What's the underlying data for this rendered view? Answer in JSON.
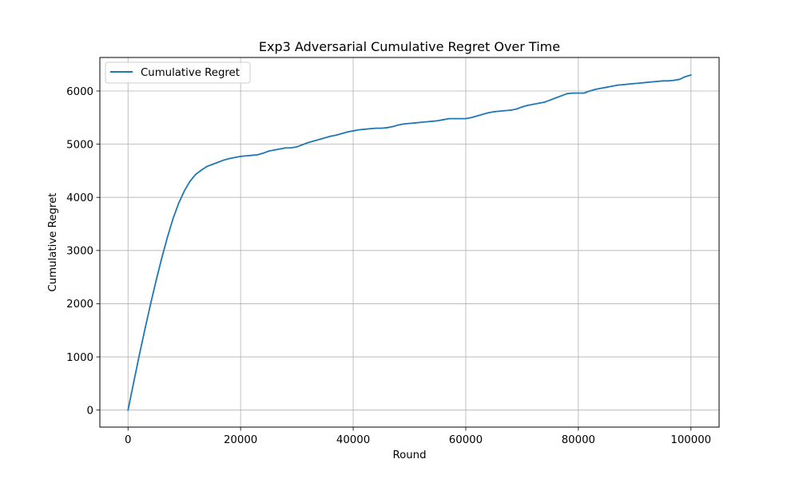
{
  "chart_data": {
    "type": "line",
    "title": "Exp3 Adversarial Cumulative Regret Over Time",
    "xlabel": "Round",
    "ylabel": "Cumulative Regret",
    "xlim": [
      -5000,
      105000
    ],
    "ylim": [
      -320,
      6630
    ],
    "xticks": [
      0,
      20000,
      40000,
      60000,
      80000,
      100000
    ],
    "yticks": [
      0,
      1000,
      2000,
      3000,
      4000,
      5000,
      6000
    ],
    "xtick_labels": [
      "0",
      "20000",
      "40000",
      "60000",
      "80000",
      "100000"
    ],
    "ytick_labels": [
      "0",
      "1000",
      "2000",
      "3000",
      "4000",
      "5000",
      "6000"
    ],
    "grid": true,
    "legend_position": "upper left",
    "series": [
      {
        "name": "Cumulative Regret",
        "color": "#1f77b4",
        "x": [
          0,
          1000,
          2000,
          3000,
          4000,
          5000,
          6000,
          7000,
          8000,
          9000,
          10000,
          11000,
          12000,
          13000,
          14000,
          15000,
          16000,
          17000,
          18000,
          19000,
          20000,
          21000,
          22000,
          23000,
          24000,
          25000,
          26000,
          27000,
          28000,
          29000,
          30000,
          31000,
          32000,
          33000,
          34000,
          35000,
          36000,
          37000,
          38000,
          39000,
          40000,
          41000,
          42000,
          43000,
          44000,
          45000,
          46000,
          47000,
          48000,
          49000,
          50000,
          51000,
          52000,
          53000,
          54000,
          55000,
          56000,
          57000,
          58000,
          59000,
          60000,
          61000,
          62000,
          63000,
          64000,
          65000,
          66000,
          67000,
          68000,
          69000,
          70000,
          71000,
          72000,
          73000,
          74000,
          75000,
          76000,
          77000,
          78000,
          79000,
          80000,
          81000,
          82000,
          83000,
          84000,
          85000,
          86000,
          87000,
          88000,
          89000,
          90000,
          91000,
          92000,
          93000,
          94000,
          95000,
          96000,
          97000,
          98000,
          99000,
          100000
        ],
        "values": [
          0,
          520,
          1030,
          1520,
          1990,
          2440,
          2860,
          3250,
          3600,
          3890,
          4120,
          4300,
          4430,
          4510,
          4580,
          4620,
          4660,
          4700,
          4730,
          4750,
          4770,
          4780,
          4790,
          4800,
          4830,
          4870,
          4890,
          4910,
          4930,
          4930,
          4950,
          4990,
          5030,
          5060,
          5090,
          5120,
          5150,
          5170,
          5200,
          5230,
          5250,
          5270,
          5280,
          5290,
          5300,
          5300,
          5310,
          5330,
          5360,
          5380,
          5390,
          5400,
          5410,
          5420,
          5430,
          5440,
          5460,
          5480,
          5480,
          5480,
          5480,
          5500,
          5530,
          5560,
          5590,
          5610,
          5620,
          5630,
          5640,
          5660,
          5700,
          5730,
          5750,
          5770,
          5790,
          5830,
          5870,
          5910,
          5950,
          5960,
          5960,
          5960,
          6000,
          6030,
          6050,
          6070,
          6090,
          6110,
          6120,
          6130,
          6140,
          6150,
          6160,
          6170,
          6180,
          6190,
          6190,
          6200,
          6220,
          6270,
          6300
        ]
      }
    ]
  }
}
